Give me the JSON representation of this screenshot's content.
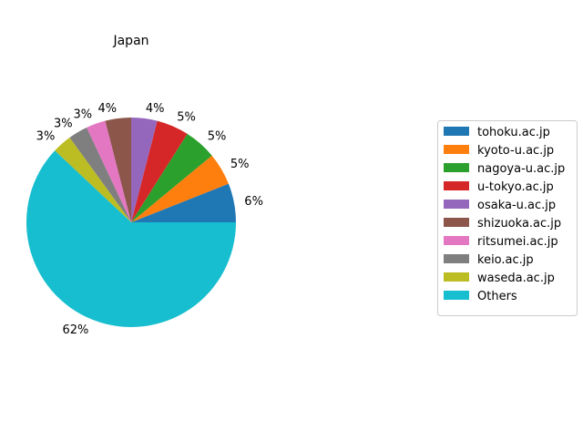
{
  "chart_data": {
    "type": "pie",
    "title": "Japan",
    "categories": [
      "tohoku.ac.jp",
      "kyoto-u.ac.jp",
      "nagoya-u.ac.jp",
      "u-tokyo.ac.jp",
      "osaka-u.ac.jp",
      "shizuoka.ac.jp",
      "ritsumei.ac.jp",
      "keio.ac.jp",
      "waseda.ac.jp",
      "Others"
    ],
    "values": [
      6,
      5,
      5,
      5,
      4,
      4,
      3,
      3,
      3,
      62
    ],
    "labels": [
      "6%",
      "5%",
      "5%",
      "5%",
      "4%",
      "4%",
      "3%",
      "3%",
      "3%",
      "62%"
    ],
    "colors": [
      "#1f77b4",
      "#ff7f0e",
      "#2ca02c",
      "#d62728",
      "#9467bd",
      "#8c564b",
      "#e377c2",
      "#7f7f7f",
      "#bcbd22",
      "#17becf"
    ],
    "start_angle_deg": 0,
    "direction": "counterclockwise",
    "legend_placement": "right"
  }
}
